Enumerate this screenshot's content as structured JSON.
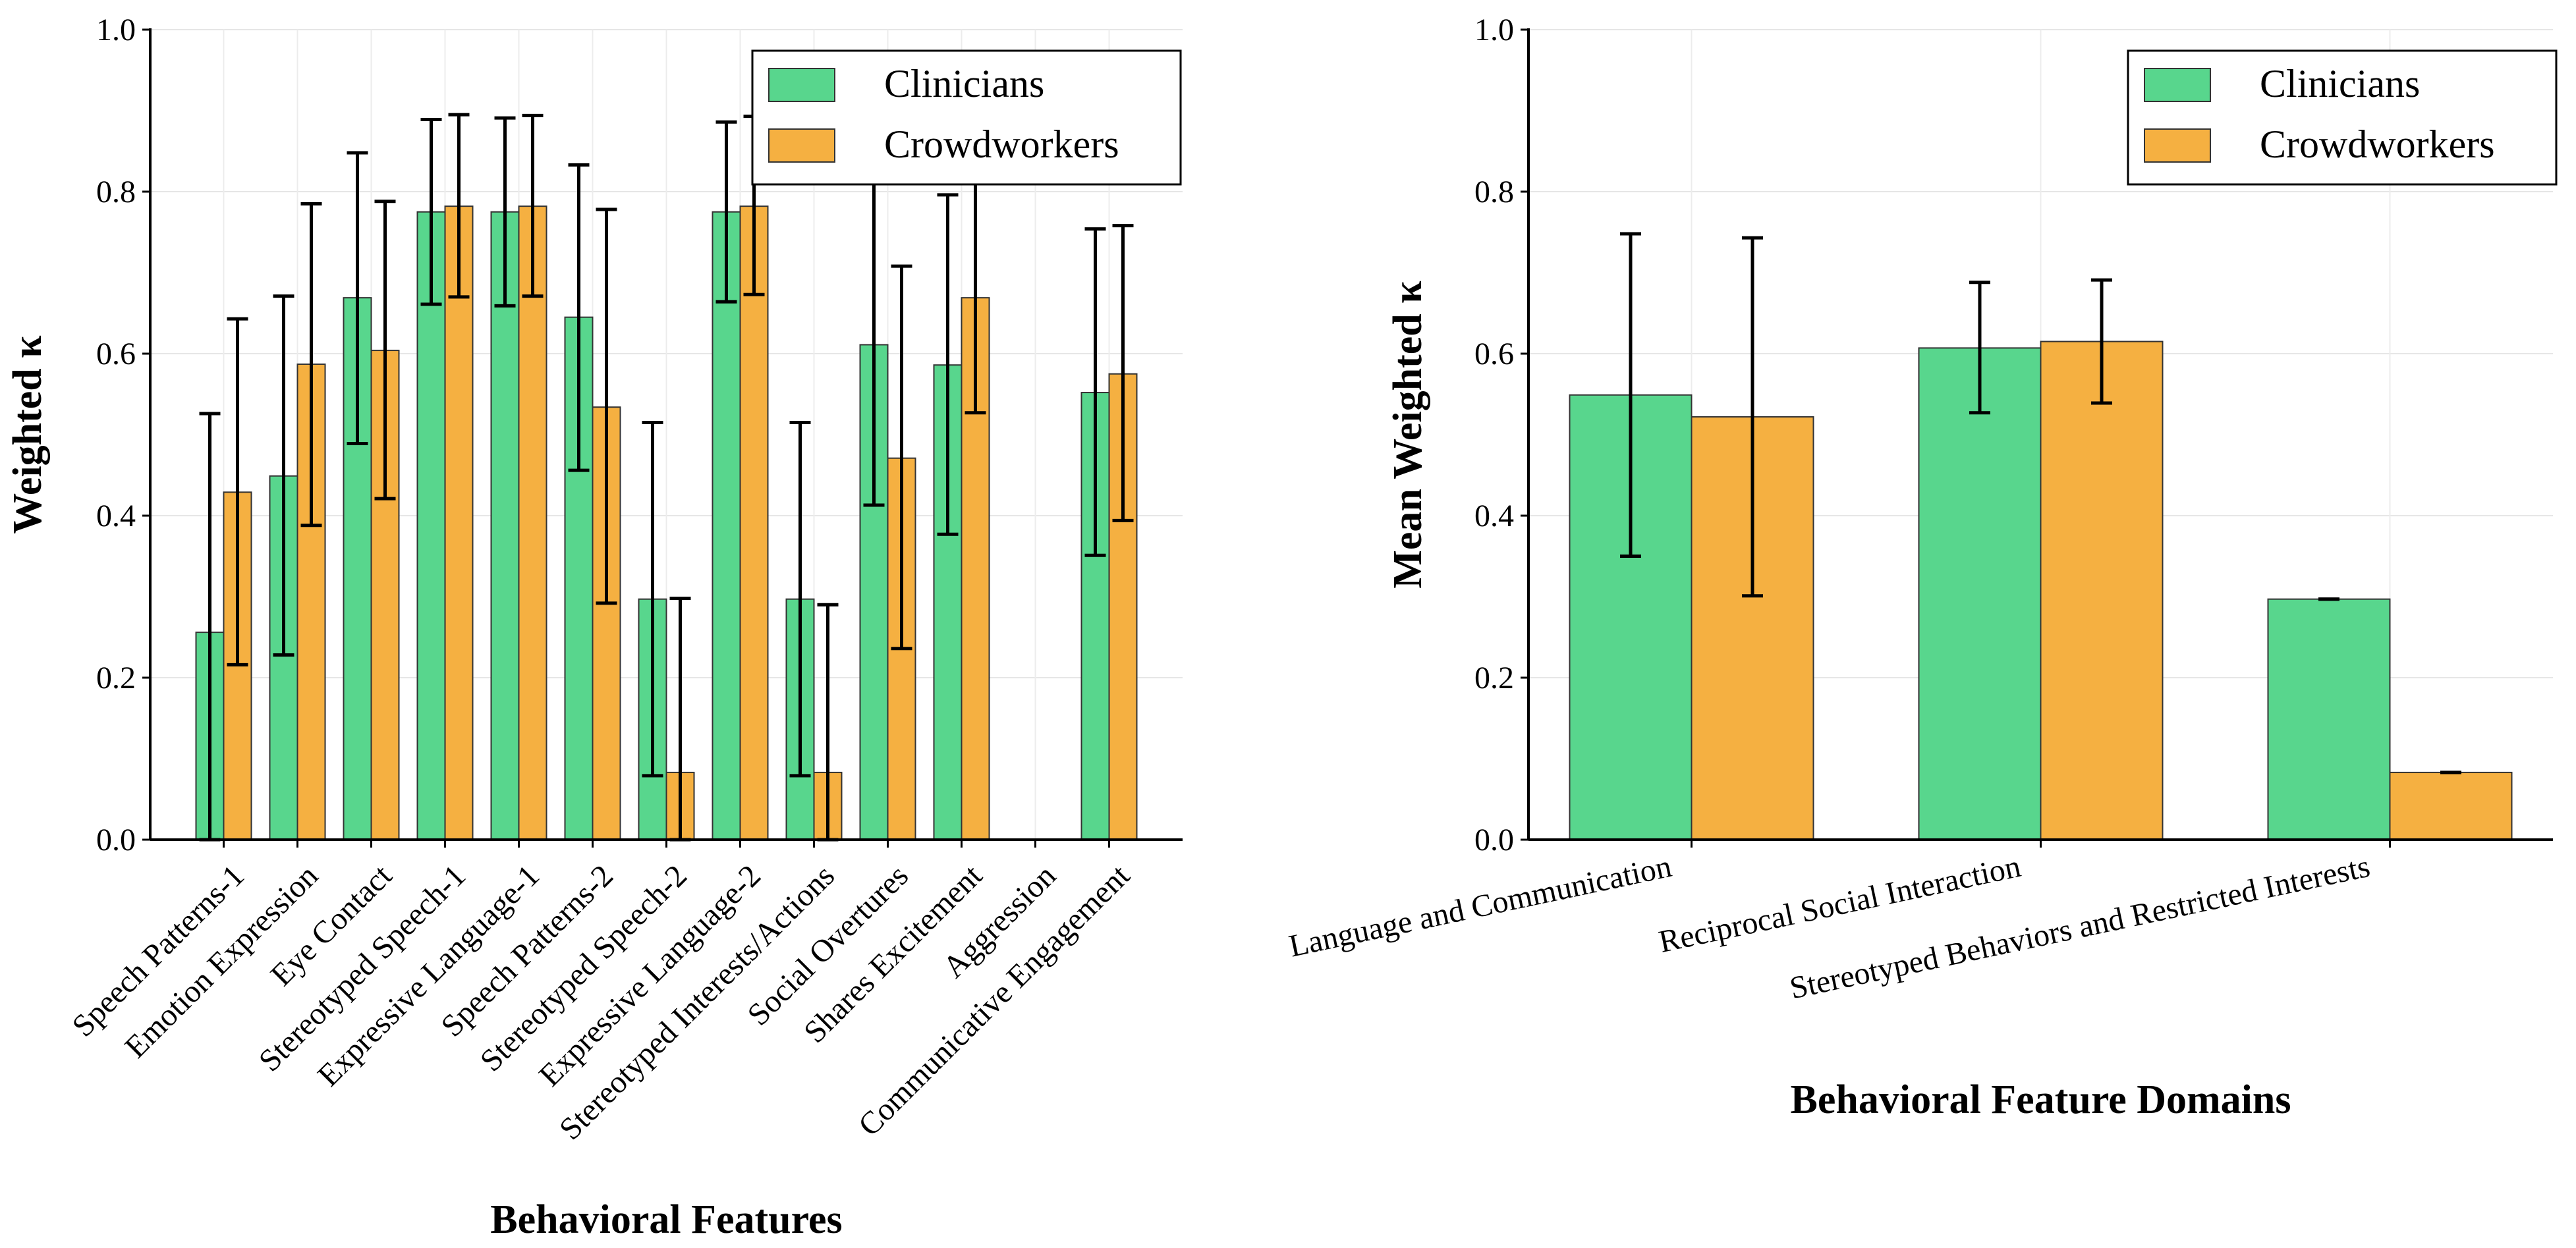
{
  "chart_data": [
    {
      "type": "bar",
      "title": "",
      "xlabel": "Behavioral Features",
      "ylabel": "Weighted κ",
      "ylim": [
        0,
        1.0
      ],
      "yticks": [
        "0.0",
        "0.2",
        "0.4",
        "0.6",
        "0.8",
        "1.0"
      ],
      "grid": true,
      "legend_position": "top-right",
      "categories": [
        "Speech Patterns-1",
        "Emotion Expression",
        "Eye Contact",
        "Stereotyped Speech-1",
        "Expressive Language-1",
        "Speech Patterns-2",
        "Stereotyped Speech-2",
        "Expressive Language-2",
        "Stereotyped Interests/Actions",
        "Social Overtures",
        "Shares Excitement",
        "Aggression",
        "Communicative Engagement"
      ],
      "series": [
        {
          "name": "Clinicians",
          "color": "#58D68D",
          "values": [
            0.256,
            0.449,
            0.669,
            0.775,
            0.775,
            0.645,
            0.297,
            0.775,
            0.297,
            0.611,
            0.586,
            0.0,
            0.552
          ],
          "err_low": [
            0.0,
            0.228,
            0.489,
            0.661,
            0.659,
            0.456,
            0.079,
            0.664,
            0.079,
            0.413,
            0.377,
            null,
            0.351
          ],
          "err_high": [
            0.526,
            0.671,
            0.848,
            0.889,
            0.891,
            0.833,
            0.515,
            0.886,
            0.515,
            0.81,
            0.796,
            null,
            0.754
          ]
        },
        {
          "name": "Crowdworkers",
          "color": "#F5B041",
          "values": [
            0.429,
            0.587,
            0.604,
            0.782,
            0.782,
            0.534,
            0.083,
            0.782,
            0.083,
            0.471,
            0.669,
            0.0,
            0.575
          ],
          "err_low": [
            0.216,
            0.388,
            0.421,
            0.67,
            0.671,
            0.292,
            0.0,
            0.673,
            0.0,
            0.236,
            0.527,
            null,
            0.394
          ],
          "err_high": [
            0.643,
            0.785,
            0.788,
            0.895,
            0.894,
            0.778,
            0.298,
            0.893,
            0.29,
            0.708,
            0.813,
            null,
            0.758
          ]
        }
      ]
    },
    {
      "type": "bar",
      "title": "",
      "xlabel": "Behavioral Feature Domains",
      "ylabel": "Mean Weighted κ",
      "ylim": [
        0,
        1.0
      ],
      "yticks": [
        "0.0",
        "0.2",
        "0.4",
        "0.6",
        "0.8",
        "1.0"
      ],
      "grid": true,
      "legend_position": "top-right",
      "categories": [
        "Language and Communication",
        "Reciprocal Social Interaction",
        "Stereotyped Behaviors and Restricted Interests"
      ],
      "series": [
        {
          "name": "Clinicians",
          "color": "#58D68D",
          "values": [
            0.549,
            0.607,
            0.297
          ],
          "err_low": [
            0.35,
            0.527,
            0.297
          ],
          "err_high": [
            0.748,
            0.688,
            0.297
          ]
        },
        {
          "name": "Crowdworkers",
          "color": "#F5B041",
          "values": [
            0.522,
            0.615,
            0.083
          ],
          "err_low": [
            0.301,
            0.539,
            0.083
          ],
          "err_high": [
            0.743,
            0.691,
            0.083
          ]
        }
      ]
    }
  ]
}
